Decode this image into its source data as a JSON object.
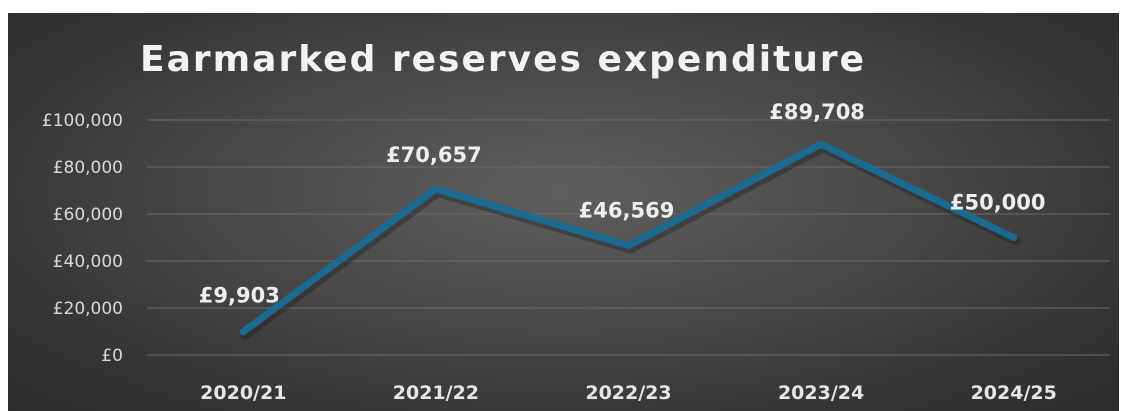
{
  "chart_data": {
    "type": "line",
    "title": "Earmarked reserves expenditure",
    "xlabel": "",
    "ylabel": "",
    "categories": [
      "2020/21",
      "2021/22",
      "2022/23",
      "2023/24",
      "2024/25"
    ],
    "series": [
      {
        "values": [
          9903,
          70657,
          46569,
          89708,
          50000
        ],
        "data_labels": [
          "£9,903",
          "£70,657",
          "£46,569",
          "£89,708",
          "£50,000"
        ],
        "color": "#1b6a8f"
      }
    ],
    "ylim": [
      0,
      100000
    ],
    "yticks": [
      0,
      20000,
      40000,
      60000,
      80000,
      100000
    ],
    "ytick_labels": [
      "£0",
      "£20,000",
      "£40,000",
      "£60,000",
      "£80,000",
      "£100,000"
    ],
    "grid": true,
    "legend": "none"
  },
  "colors": {
    "background": "#474747",
    "gridline": "#6a6a6a",
    "text": "#f2f2f2",
    "line": "#1b6a8f"
  }
}
